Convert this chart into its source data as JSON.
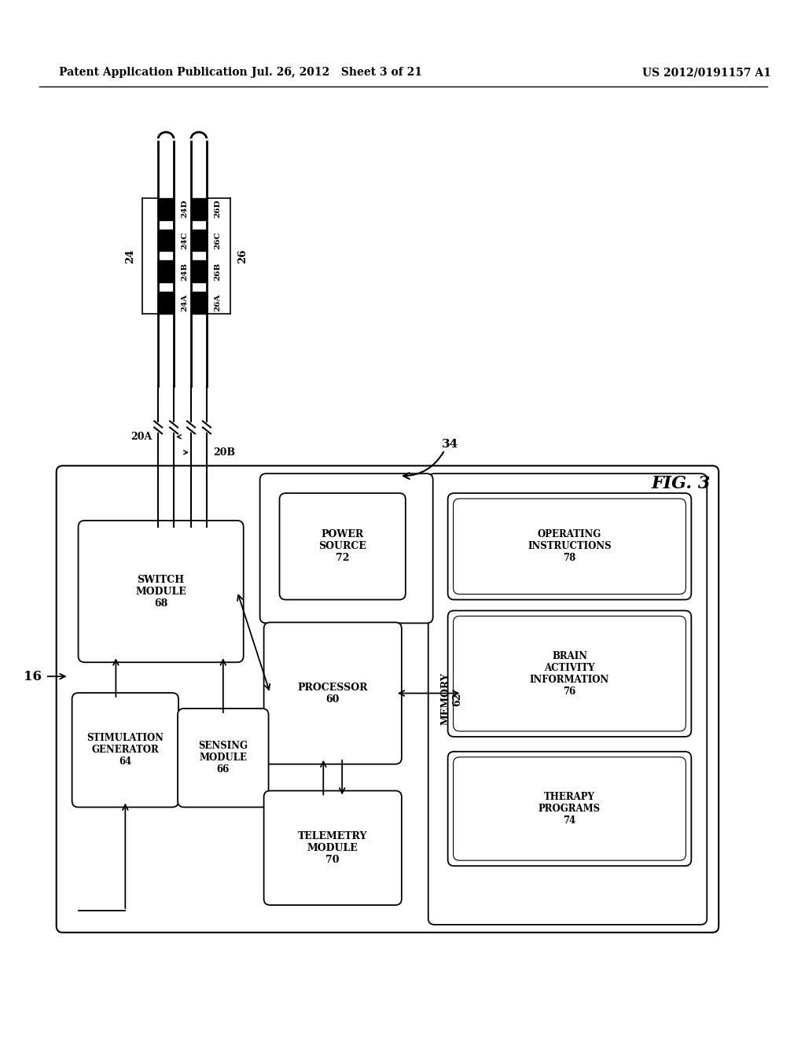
{
  "header_left": "Patent Application Publication",
  "header_center": "Jul. 26, 2012   Sheet 3 of 21",
  "header_right": "US 2012/0191157 A1",
  "fig_label": "FIG. 3",
  "bg_color": "#ffffff"
}
